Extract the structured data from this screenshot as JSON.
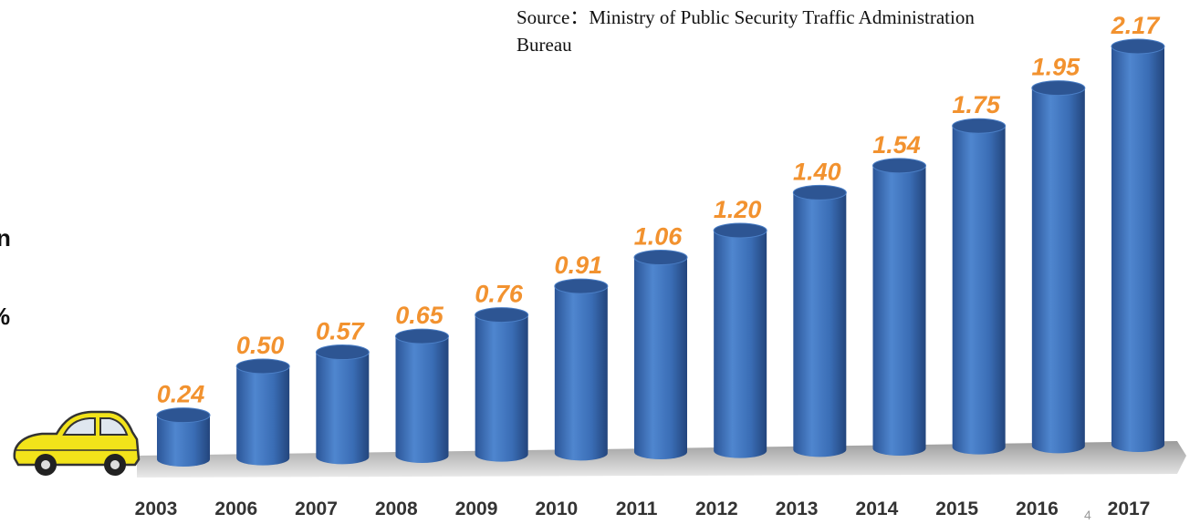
{
  "source_note": "Source：Ministry of Public Security Traffic Administration Bureau",
  "page_number": "4",
  "edge_fragments": [
    "n",
    "%"
  ],
  "colors": {
    "bar_fill": "#3a6db5",
    "bar_top": "#2d5593",
    "value_label": "#f2922f",
    "year_label": "#333333",
    "floor_shadow": "#9a9a9a",
    "car_body": "#f2e31a"
  },
  "chart_data": {
    "type": "bar",
    "title": "",
    "xlabel": "",
    "ylabel": "",
    "categories": [
      "2003",
      "2006",
      "2007",
      "2008",
      "2009",
      "2010",
      "2011",
      "2012",
      "2013",
      "2014",
      "2015",
      "2016",
      "2017"
    ],
    "values": [
      0.24,
      0.5,
      0.57,
      0.65,
      0.76,
      0.91,
      1.06,
      1.2,
      1.4,
      1.54,
      1.75,
      1.95,
      2.17
    ],
    "value_labels": [
      "0.24",
      "0.50",
      "0.57",
      "0.65",
      "0.76",
      "0.91",
      "1.06",
      "1.20",
      "1.40",
      "1.54",
      "1.75",
      "1.95",
      "2.17"
    ],
    "ylim": [
      0,
      2.17
    ],
    "grid": false,
    "legend": "none",
    "style": "3d-cylinder"
  }
}
